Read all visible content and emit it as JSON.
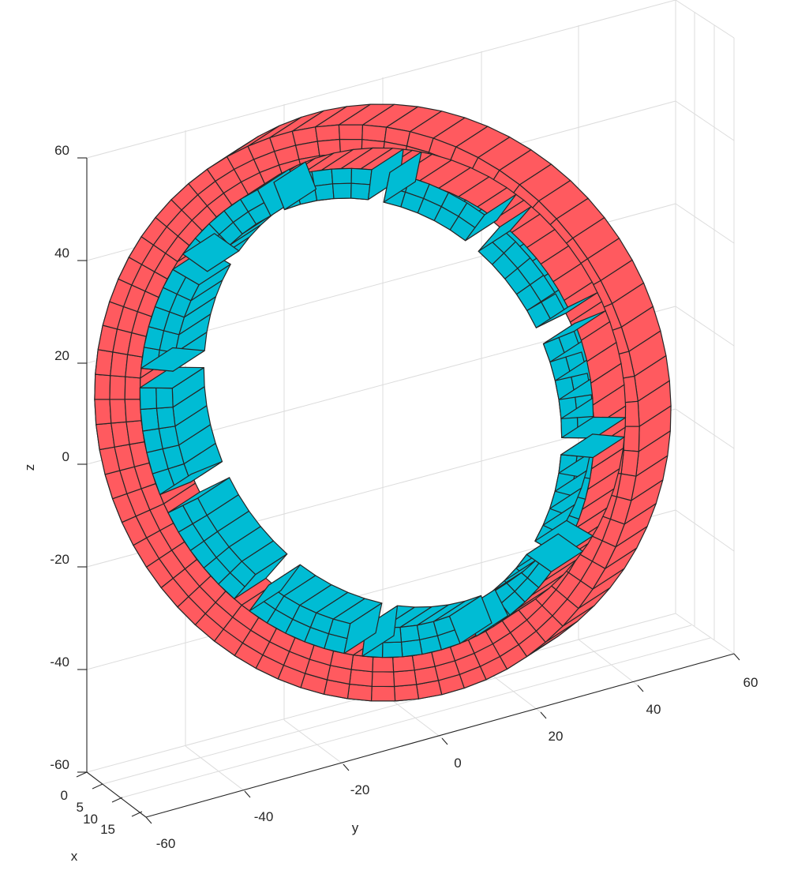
{
  "axes": {
    "x": {
      "label": "x",
      "ticks": [
        "0",
        "5",
        "10",
        "15"
      ]
    },
    "y": {
      "label": "y",
      "ticks": [
        "-60",
        "-40",
        "-20",
        "0",
        "20",
        "40",
        "60"
      ]
    },
    "z": {
      "label": "z",
      "ticks": [
        "60",
        "40",
        "20",
        "0",
        "-20",
        "-40",
        "-60"
      ]
    }
  },
  "colors": {
    "ring": "#ff5a5f",
    "magnet": "#00bcd4",
    "edge": "#262626",
    "grid": "#dcdcdc"
  },
  "model": {
    "magnet_count": 12
  }
}
